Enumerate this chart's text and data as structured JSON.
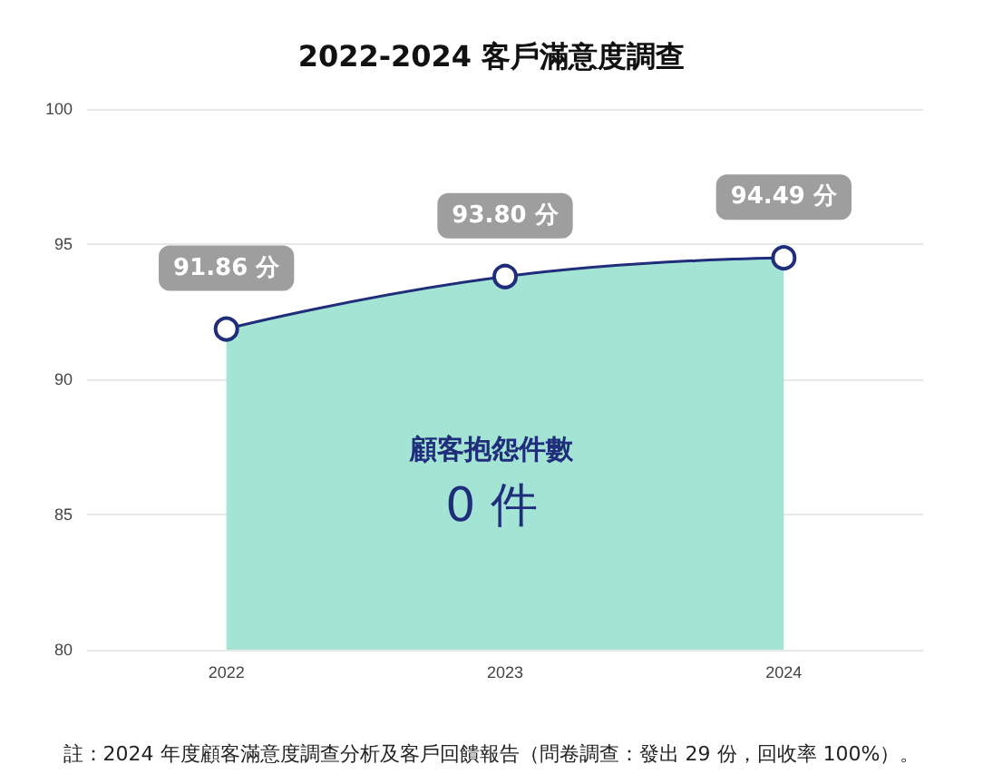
{
  "chart_data": {
    "type": "area",
    "title": "2022-2024 客戶滿意度調查",
    "categories": [
      "2022",
      "2023",
      "2024"
    ],
    "values": [
      91.86,
      93.8,
      94.49
    ],
    "value_labels": [
      "91.86 分",
      "93.80 分",
      "94.49 分"
    ],
    "color": "#1f2d7a",
    "ylim": [
      80,
      100
    ],
    "yticks": [
      80,
      85,
      90,
      95,
      100
    ],
    "grid": "y",
    "marker": "circle",
    "annotations": [
      "顧客抱怨件數",
      "0 件",
      "註：2024 年度顧客滿意度調查分析及客戶回饋報告（問卷調查：發出 29 份，回收率 100%）。"
    ]
  }
}
